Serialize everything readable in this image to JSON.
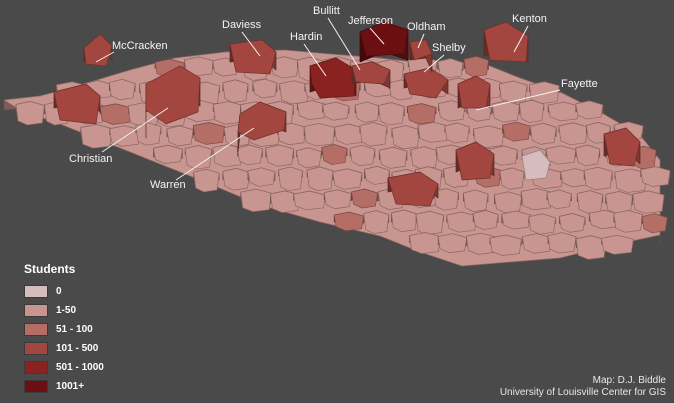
{
  "title": "",
  "legend": {
    "title": "Students",
    "classes": [
      {
        "label": "0",
        "color": "#d6bcbc"
      },
      {
        "label": "1-50",
        "color": "#c89590"
      },
      {
        "label": "51 - 100",
        "color": "#b56e66"
      },
      {
        "label": "101 - 500",
        "color": "#a2463f"
      },
      {
        "label": "501 - 1000",
        "color": "#8a2222"
      },
      {
        "label": "1001+",
        "color": "#6b0f12"
      }
    ]
  },
  "counties": [
    {
      "name": "McCracken",
      "class": "101 - 500"
    },
    {
      "name": "Daviess",
      "class": "101 - 500"
    },
    {
      "name": "Hardin",
      "class": "501 - 1000"
    },
    {
      "name": "Bullitt",
      "class": "101 - 500"
    },
    {
      "name": "Jefferson",
      "class": "1001+"
    },
    {
      "name": "Oldham",
      "class": "101 - 500"
    },
    {
      "name": "Shelby",
      "class": "101 - 500"
    },
    {
      "name": "Kenton",
      "class": "101 - 500"
    },
    {
      "name": "Fayette",
      "class": "101 - 500"
    },
    {
      "name": "Christian",
      "class": "101 - 500"
    },
    {
      "name": "Warren",
      "class": "101 - 500"
    }
  ],
  "credit": {
    "line1": "Map: D.J. Biddle",
    "line2": "University of Louisville Center for GIS"
  }
}
